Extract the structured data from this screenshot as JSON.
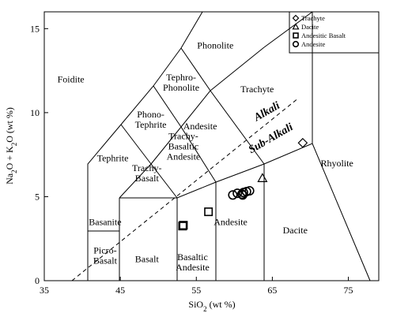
{
  "chart_data": {
    "type": "scatter",
    "title": "",
    "xlabel": "SiO2 (wt %)",
    "ylabel": "Na2O + K2O (wt %)",
    "xlim": [
      35,
      79
    ],
    "ylim": [
      0,
      16
    ],
    "x_ticks": [
      35,
      45,
      55,
      65,
      75
    ],
    "y_ticks": [
      0,
      5,
      10,
      15
    ],
    "grid": false,
    "legend": "top-right",
    "fields": [
      {
        "id": "foidite",
        "label": "Foidite",
        "x": 38.5,
        "y": 12.0
      },
      {
        "id": "phonolite",
        "label": "Phonolite",
        "x": 57.5,
        "y": 14.0
      },
      {
        "id": "tephro-phonolite",
        "label": "Tephro-\nPhonolite",
        "x": 53.0,
        "y": 11.8
      },
      {
        "id": "trachyte",
        "label": "Trachyte",
        "x": 63.0,
        "y": 11.4
      },
      {
        "id": "phono-tephrite",
        "label": "Phono-\nTephrite",
        "x": 49.0,
        "y": 9.6
      },
      {
        "id": "andesite-upper",
        "label": "Andesite",
        "x": 55.5,
        "y": 9.2
      },
      {
        "id": "trachy-basaltic-andesite",
        "label": "Trachy-\nBasaltic\nAndesite",
        "x": 53.3,
        "y": 8.0
      },
      {
        "id": "tephrite",
        "label": "Tephrite",
        "x": 44.0,
        "y": 7.3
      },
      {
        "id": "trachy-basalt",
        "label": "Trachy-\nBasalt",
        "x": 48.5,
        "y": 6.4
      },
      {
        "id": "basanite",
        "label": "Basanite",
        "x": 43.0,
        "y": 3.5
      },
      {
        "id": "picro-basalt",
        "label": "Picro-\nBasalt",
        "x": 43.0,
        "y": 1.5
      },
      {
        "id": "basalt",
        "label": "Basalt",
        "x": 48.5,
        "y": 1.3
      },
      {
        "id": "basaltic-andesite",
        "label": "Basaltic\nAndesite",
        "x": 54.5,
        "y": 1.1
      },
      {
        "id": "andesite-lower",
        "label": "Andesite",
        "x": 59.5,
        "y": 3.5
      },
      {
        "id": "dacite",
        "label": "Dacite",
        "x": 68.0,
        "y": 3.0
      },
      {
        "id": "rhyolite",
        "label": "Rhyolite",
        "x": 73.5,
        "y": 7.0
      }
    ],
    "series_labels": [
      {
        "id": "alkali",
        "label": "Alkali",
        "x": 64.5,
        "y": 9.9
      },
      {
        "id": "sub-alkali",
        "label": "Sub-Alkali",
        "x": 65.0,
        "y": 8.3
      }
    ],
    "series": [
      {
        "name": "Trachyte",
        "marker": "diamond",
        "points": [
          [
            69.0,
            8.2
          ]
        ]
      },
      {
        "name": "Dacite",
        "marker": "triangle",
        "points": [
          [
            63.7,
            6.1
          ]
        ]
      },
      {
        "name": "Andesitic Basalt",
        "marker": "square",
        "points": [
          [
            53.3,
            3.3
          ],
          [
            53.2,
            3.25
          ],
          [
            56.6,
            4.1
          ]
        ]
      },
      {
        "name": "Andesite",
        "marker": "circle",
        "points": [
          [
            59.8,
            5.1
          ],
          [
            60.4,
            5.2
          ],
          [
            61.0,
            5.15
          ],
          [
            61.2,
            5.25
          ],
          [
            61.6,
            5.3
          ],
          [
            62.0,
            5.35
          ],
          [
            61.1,
            5.1
          ]
        ]
      }
    ]
  }
}
